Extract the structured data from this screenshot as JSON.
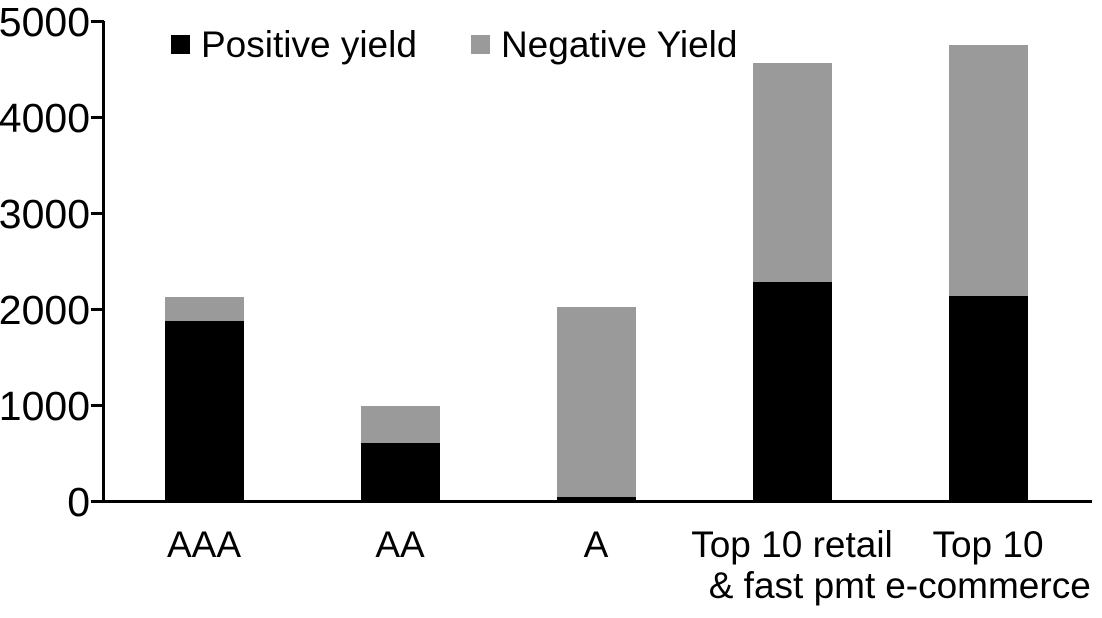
{
  "chart_data": {
    "type": "bar",
    "stacked": true,
    "title": "",
    "xlabel": "",
    "ylabel": "",
    "grid": false,
    "legend_position": "top",
    "categories": [
      "AAA",
      "AA",
      "A",
      "Top 10 retail\n& fast pmt",
      "Top 10\ne-commerce"
    ],
    "series": [
      {
        "name": "Positive yield",
        "color": "#000000",
        "values": [
          1880,
          600,
          40,
          2280,
          2140
        ]
      },
      {
        "name": "Negative Yield",
        "color": "#9A9A9A",
        "values": [
          240,
          390,
          1980,
          2280,
          2610
        ]
      }
    ],
    "totals": [
      2120,
      990,
      2020,
      4560,
      4750
    ],
    "ylim": [
      0,
      5000
    ],
    "yticks": [
      0,
      1000,
      2000,
      3000,
      4000,
      5000
    ]
  },
  "colors": {
    "background": "#FFFFFF",
    "axis": "#000000",
    "positive_series": "#000000",
    "negative_series": "#9A9A9A"
  }
}
